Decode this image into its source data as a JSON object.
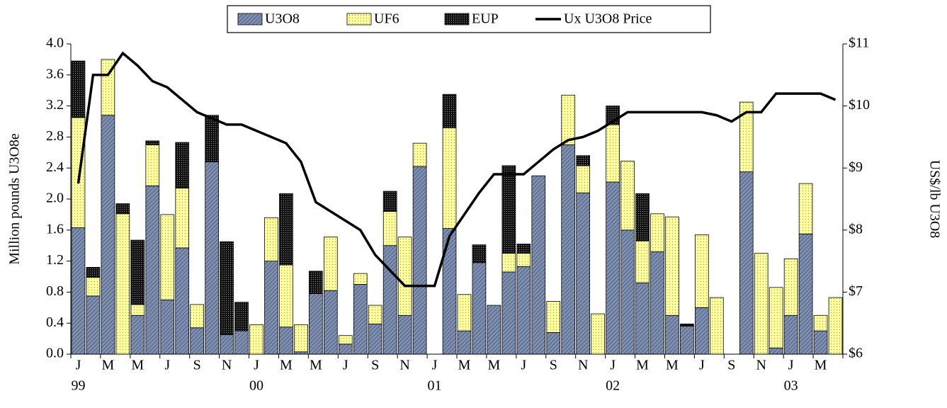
{
  "chart_data": {
    "type": "bar",
    "stacked": true,
    "categories": [
      "J",
      null,
      "M",
      null,
      "M",
      null,
      "J",
      null,
      "S",
      null,
      "N",
      null,
      "J",
      null,
      "M",
      null,
      "M",
      null,
      "J",
      null,
      "S",
      null,
      "N",
      null,
      "J",
      null,
      "M",
      null,
      "M",
      null,
      "J",
      null,
      "S",
      null,
      "N",
      null,
      "J",
      null,
      "M",
      null,
      "M",
      null,
      "J",
      null,
      "S",
      null,
      "N",
      null,
      "J",
      null,
      "M",
      null
    ],
    "year_labels": [
      "99",
      null,
      null,
      null,
      null,
      null,
      null,
      null,
      null,
      null,
      null,
      null,
      "00",
      null,
      null,
      null,
      null,
      null,
      null,
      null,
      null,
      null,
      null,
      null,
      "01",
      null,
      null,
      null,
      null,
      null,
      null,
      null,
      null,
      null,
      null,
      null,
      "02",
      null,
      null,
      null,
      null,
      null,
      null,
      null,
      null,
      null,
      null,
      null,
      "03",
      null,
      null,
      null
    ],
    "y_label": "Million pounds U3O8e",
    "y2_label": "US$/lb U3O8",
    "ylim": [
      0,
      4
    ],
    "yticks": [
      {
        "value": 0,
        "label": "0.0"
      },
      0.4,
      0.8,
      1.2,
      1.6,
      {
        "value": 2,
        "label": "2.0"
      },
      2.4,
      2.8,
      3.2,
      3.6,
      {
        "value": 4,
        "label": "4.0"
      }
    ],
    "y2lim": [
      6,
      11
    ],
    "y2ticks": [
      {
        "value": 6,
        "label": "$6"
      },
      {
        "value": 7,
        "label": "$7"
      },
      {
        "value": 8,
        "label": "$8"
      },
      {
        "value": 9,
        "label": "$9"
      },
      {
        "value": 10,
        "label": "$10"
      },
      {
        "value": 11,
        "label": "$11"
      }
    ],
    "legend": "top",
    "series": [
      {
        "name": "U3O8",
        "color": "#8090b0",
        "pattern": "hatch",
        "values": [
          1.63,
          0.75,
          3.08,
          0,
          0.5,
          2.17,
          0.7,
          1.37,
          0.34,
          2.48,
          0.25,
          0.3,
          0,
          1.2,
          0.35,
          0.03,
          0.78,
          0.82,
          0.13,
          0.9,
          0.39,
          1.4,
          0.5,
          2.42,
          0,
          1.62,
          0.3,
          1.18,
          0.63,
          1.06,
          1.13,
          2.3,
          0.28,
          2.7,
          2.08,
          0,
          2.22,
          1.6,
          0.92,
          1.32,
          0.5,
          0.36,
          0.6,
          0,
          0,
          2.35,
          0,
          0.08,
          0.5,
          1.55,
          0.3,
          0
        ]
      },
      {
        "name": "UF6",
        "color": "#ffff99",
        "pattern": "dots",
        "values": [
          1.42,
          0.24,
          0.72,
          1.81,
          0.14,
          0.53,
          1.1,
          0.77,
          0.3,
          0,
          0,
          0,
          0.38,
          0.56,
          0.8,
          0.35,
          0,
          0.69,
          0.11,
          0.14,
          0.24,
          0.44,
          1.01,
          0.3,
          0,
          1.3,
          0.47,
          0,
          0,
          0.24,
          0.17,
          0,
          0.4,
          0.64,
          0.35,
          0.52,
          0.74,
          0.89,
          0.54,
          0.49,
          1.27,
          0,
          0.94,
          0.73,
          0,
          0.9,
          1.3,
          0.78,
          0.73,
          0.65,
          0.2,
          0.73
        ]
      },
      {
        "name": "EUP",
        "color": "#222222",
        "pattern": "dots",
        "values": [
          0.73,
          0.13,
          0,
          0.13,
          0.83,
          0.05,
          0,
          0.59,
          0,
          0.6,
          1.2,
          0.37,
          0,
          0,
          0.92,
          0,
          0.29,
          0,
          0,
          0,
          0,
          0.26,
          0,
          0,
          0,
          0.43,
          0,
          0.23,
          0,
          1.13,
          0.12,
          0,
          0,
          0,
          0.13,
          0,
          0.24,
          0,
          0.61,
          0,
          0,
          0.03,
          0,
          0,
          0,
          0,
          0,
          0,
          0,
          0,
          0,
          0
        ]
      },
      {
        "name": "Ux U3O8 Price",
        "type": "line",
        "axis": "y2",
        "color": "#000000",
        "values": [
          8.75,
          10.5,
          10.5,
          10.85,
          10.65,
          10.4,
          10.3,
          10.1,
          9.9,
          9.8,
          9.7,
          9.7,
          9.6,
          9.5,
          9.4,
          9.1,
          8.45,
          8.3,
          8.15,
          8.0,
          7.6,
          7.35,
          7.1,
          7.1,
          7.1,
          7.9,
          8.25,
          8.6,
          8.9,
          8.9,
          8.9,
          9.1,
          9.3,
          9.45,
          9.5,
          9.6,
          9.75,
          9.9,
          9.9,
          9.9,
          9.9,
          9.9,
          9.9,
          9.85,
          9.75,
          9.9,
          9.9,
          10.2,
          10.2,
          10.2,
          10.2,
          10.1
        ]
      }
    ]
  }
}
